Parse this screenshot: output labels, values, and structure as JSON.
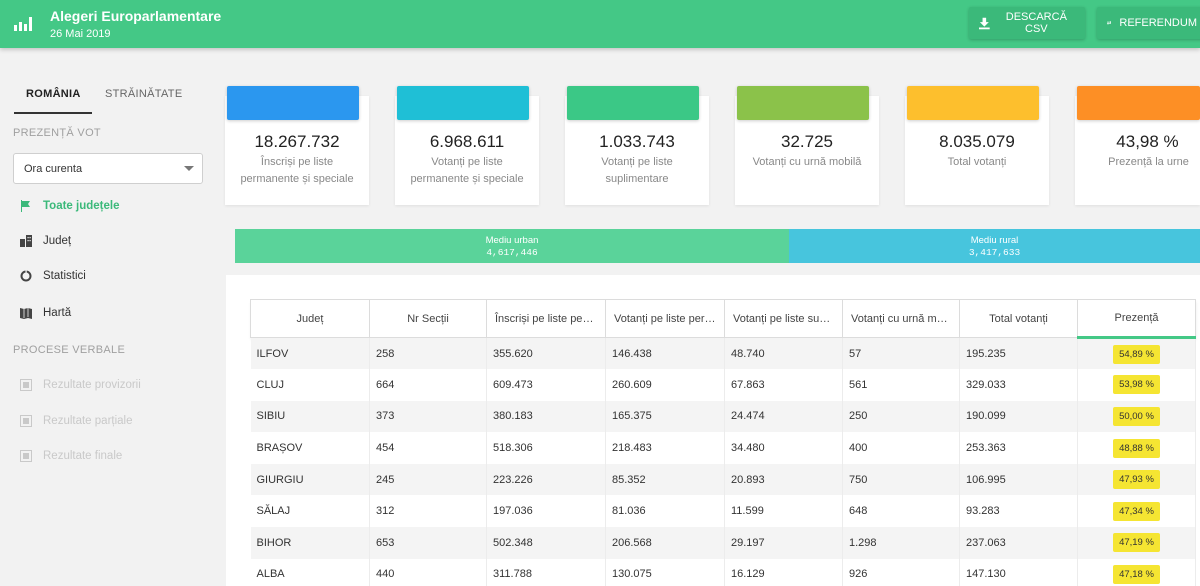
{
  "header": {
    "title": "Alegeri Europarlamentare",
    "date": "26 Mai 2019",
    "csv_label": "DESCARCĂ CSV",
    "referendum_label": "REFERENDUM"
  },
  "sidebar": {
    "tabs": [
      "ROMÂNIA",
      "STRĂINĂTATE"
    ],
    "section_vote": "PREZENȚĂ VOT",
    "select_value": "Ora curenta",
    "nav": [
      "Toate județele",
      "Județ",
      "Statistici",
      "Hartă"
    ],
    "section_pv": "PROCESE VERBALE",
    "pv_items": [
      "Rezultate provizorii",
      "Rezultate parțiale",
      "Rezultate finale"
    ]
  },
  "cards": [
    {
      "value": "18.267.732",
      "label": "Înscriși pe liste permanente și speciale",
      "color": "#2b97ef"
    },
    {
      "value": "6.968.611",
      "label": "Votanți pe liste permanente și speciale",
      "color": "#1fbfd6"
    },
    {
      "value": "1.033.743",
      "label": "Votanți pe liste suplimentare",
      "color": "#3bc886"
    },
    {
      "value": "32.725",
      "label": "Votanți cu urnă mobilă",
      "color": "#8bc24a"
    },
    {
      "value": "8.035.079",
      "label": "Total votanți",
      "color": "#fdbf2d"
    },
    {
      "value": "43,98 %",
      "label": "Prezență la urne",
      "color": "#fd8f25"
    }
  ],
  "environment": {
    "urban_label": "Mediu urban",
    "urban_value": "4,617,446",
    "rural_label": "Mediu rural",
    "rural_value": "3,417,633"
  },
  "table": {
    "headers": [
      "Județ",
      "Nr Secții",
      "Înscriși pe liste permanente și speciale",
      "Votanți pe liste permanente și speciale",
      "Votanți pe liste suplimentare",
      "Votanți cu urnă mobilă",
      "Total votanți",
      "Prezență"
    ],
    "rows": [
      [
        "ILFOV",
        "258",
        "355.620",
        "146.438",
        "48.740",
        "57",
        "195.235",
        "54,89 %"
      ],
      [
        "CLUJ",
        "664",
        "609.473",
        "260.609",
        "67.863",
        "561",
        "329.033",
        "53,98 %"
      ],
      [
        "SIBIU",
        "373",
        "380.183",
        "165.375",
        "24.474",
        "250",
        "190.099",
        "50,00 %"
      ],
      [
        "BRAȘOV",
        "454",
        "518.306",
        "218.483",
        "34.480",
        "400",
        "253.363",
        "48,88 %"
      ],
      [
        "GIURGIU",
        "245",
        "223.226",
        "85.352",
        "20.893",
        "750",
        "106.995",
        "47,93 %"
      ],
      [
        "SĂLAJ",
        "312",
        "197.036",
        "81.036",
        "11.599",
        "648",
        "93.283",
        "47,34 %"
      ],
      [
        "BIHOR",
        "653",
        "502.348",
        "206.568",
        "29.197",
        "1.298",
        "237.063",
        "47,19 %"
      ],
      [
        "ALBA",
        "440",
        "311.788",
        "130.075",
        "16.129",
        "926",
        "147.130",
        "47,18 %"
      ]
    ]
  },
  "colors": {
    "accent": "#44c886",
    "badge": "#f5e532"
  }
}
